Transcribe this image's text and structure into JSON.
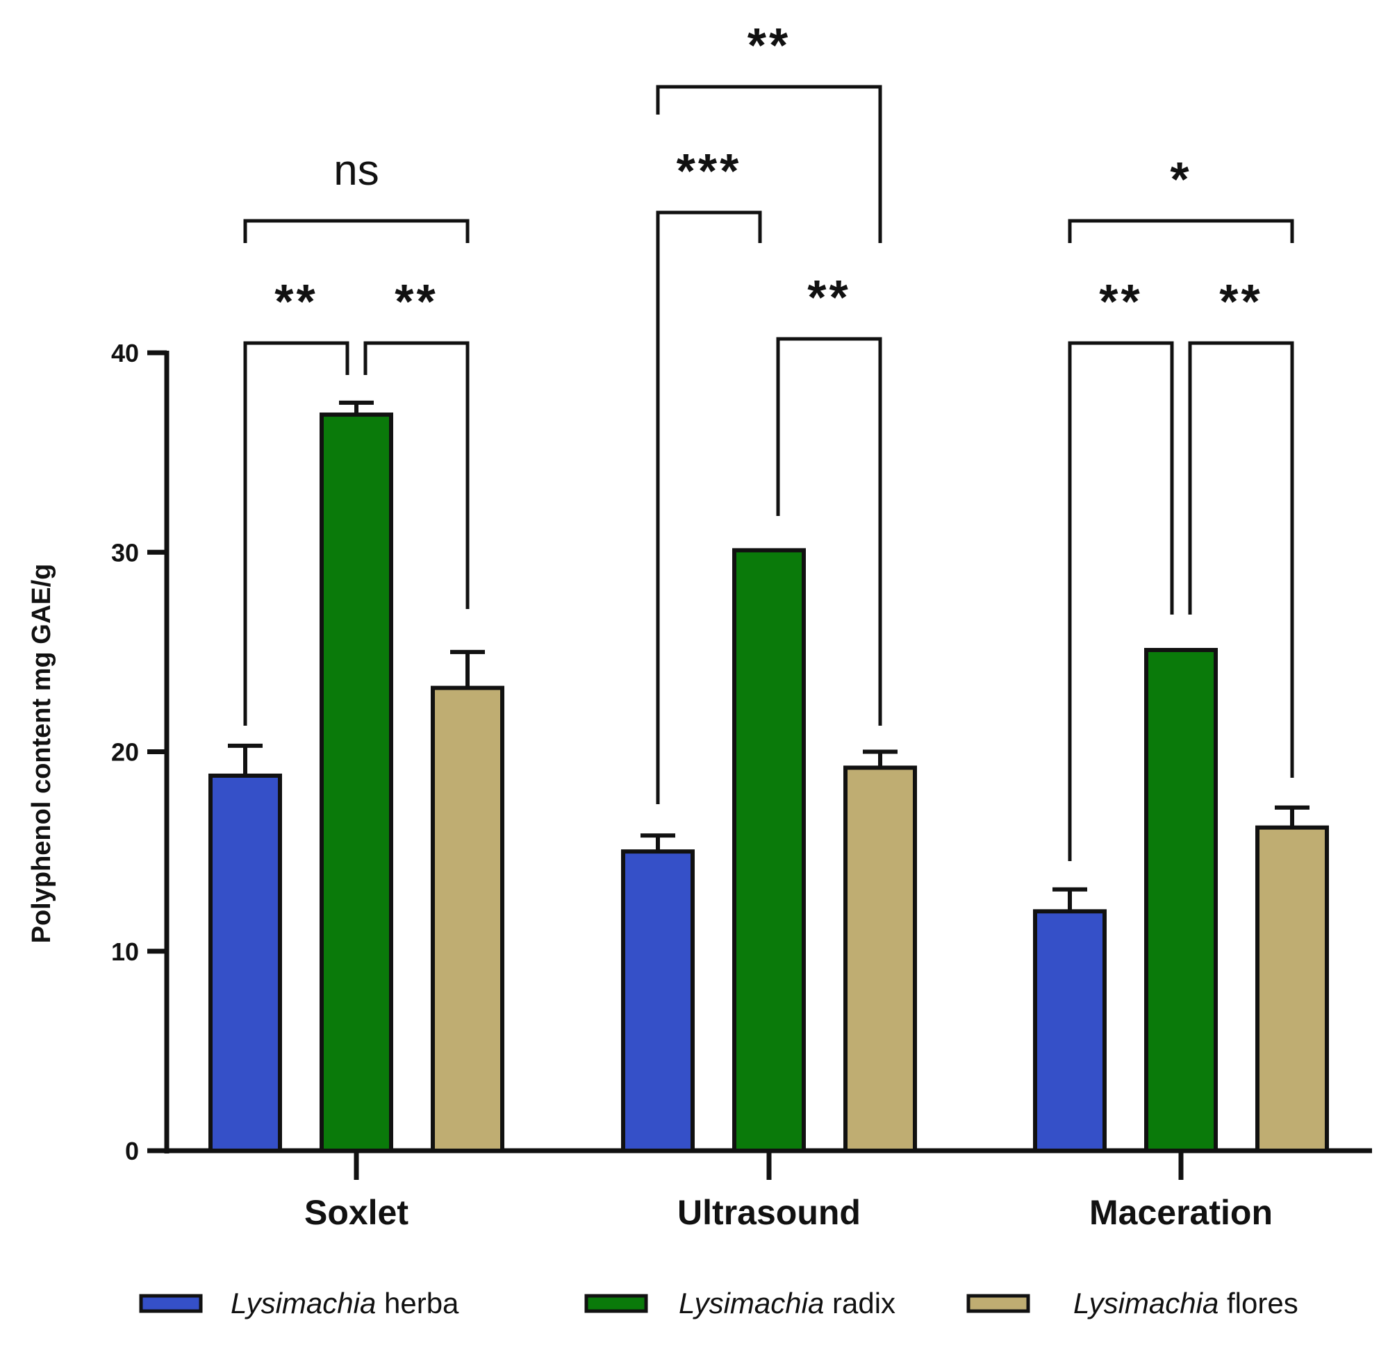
{
  "chart_data": {
    "type": "bar",
    "title": "",
    "xlabel": "",
    "ylabel": "Polyphenol content mg GAE/g",
    "ylim": [
      0,
      40
    ],
    "yticks": [
      "0",
      "10",
      "20",
      "30",
      "40"
    ],
    "categories": [
      "Soxlet",
      "Ultrasound",
      "Maceration"
    ],
    "series": [
      {
        "name_italic": "Lysimachia",
        "name_rest": "herba",
        "color": "#3550c8",
        "values": [
          18.8,
          15.0,
          12.0
        ],
        "errors": [
          1.5,
          0.8,
          1.1
        ]
      },
      {
        "name_italic": "Lysimachia",
        "name_rest": "radix",
        "color": "#0a7a0a",
        "values": [
          36.9,
          30.1,
          25.1
        ],
        "errors": [
          0.6,
          0.05,
          0.05
        ]
      },
      {
        "name_italic": "Lysimachia",
        "name_rest": "flores",
        "color": "#bfad72",
        "values": [
          23.2,
          19.2,
          16.2
        ],
        "errors": [
          1.8,
          0.8,
          1.0
        ]
      }
    ],
    "significance": [
      {
        "group": 0,
        "from": 0,
        "to": 2,
        "label": "ns"
      },
      {
        "group": 0,
        "from": 0,
        "to": 1,
        "label": "**"
      },
      {
        "group": 0,
        "from": 1,
        "to": 2,
        "label": "**"
      },
      {
        "group": 1,
        "from": 0,
        "to": 2,
        "label": "**"
      },
      {
        "group": 1,
        "from": 0,
        "to": 1,
        "label": "***"
      },
      {
        "group": 1,
        "from": 1,
        "to": 2,
        "label": "**"
      },
      {
        "group": 2,
        "from": 0,
        "to": 2,
        "label": "*"
      },
      {
        "group": 2,
        "from": 0,
        "to": 1,
        "label": "**"
      },
      {
        "group": 2,
        "from": 1,
        "to": 2,
        "label": "**"
      }
    ]
  }
}
